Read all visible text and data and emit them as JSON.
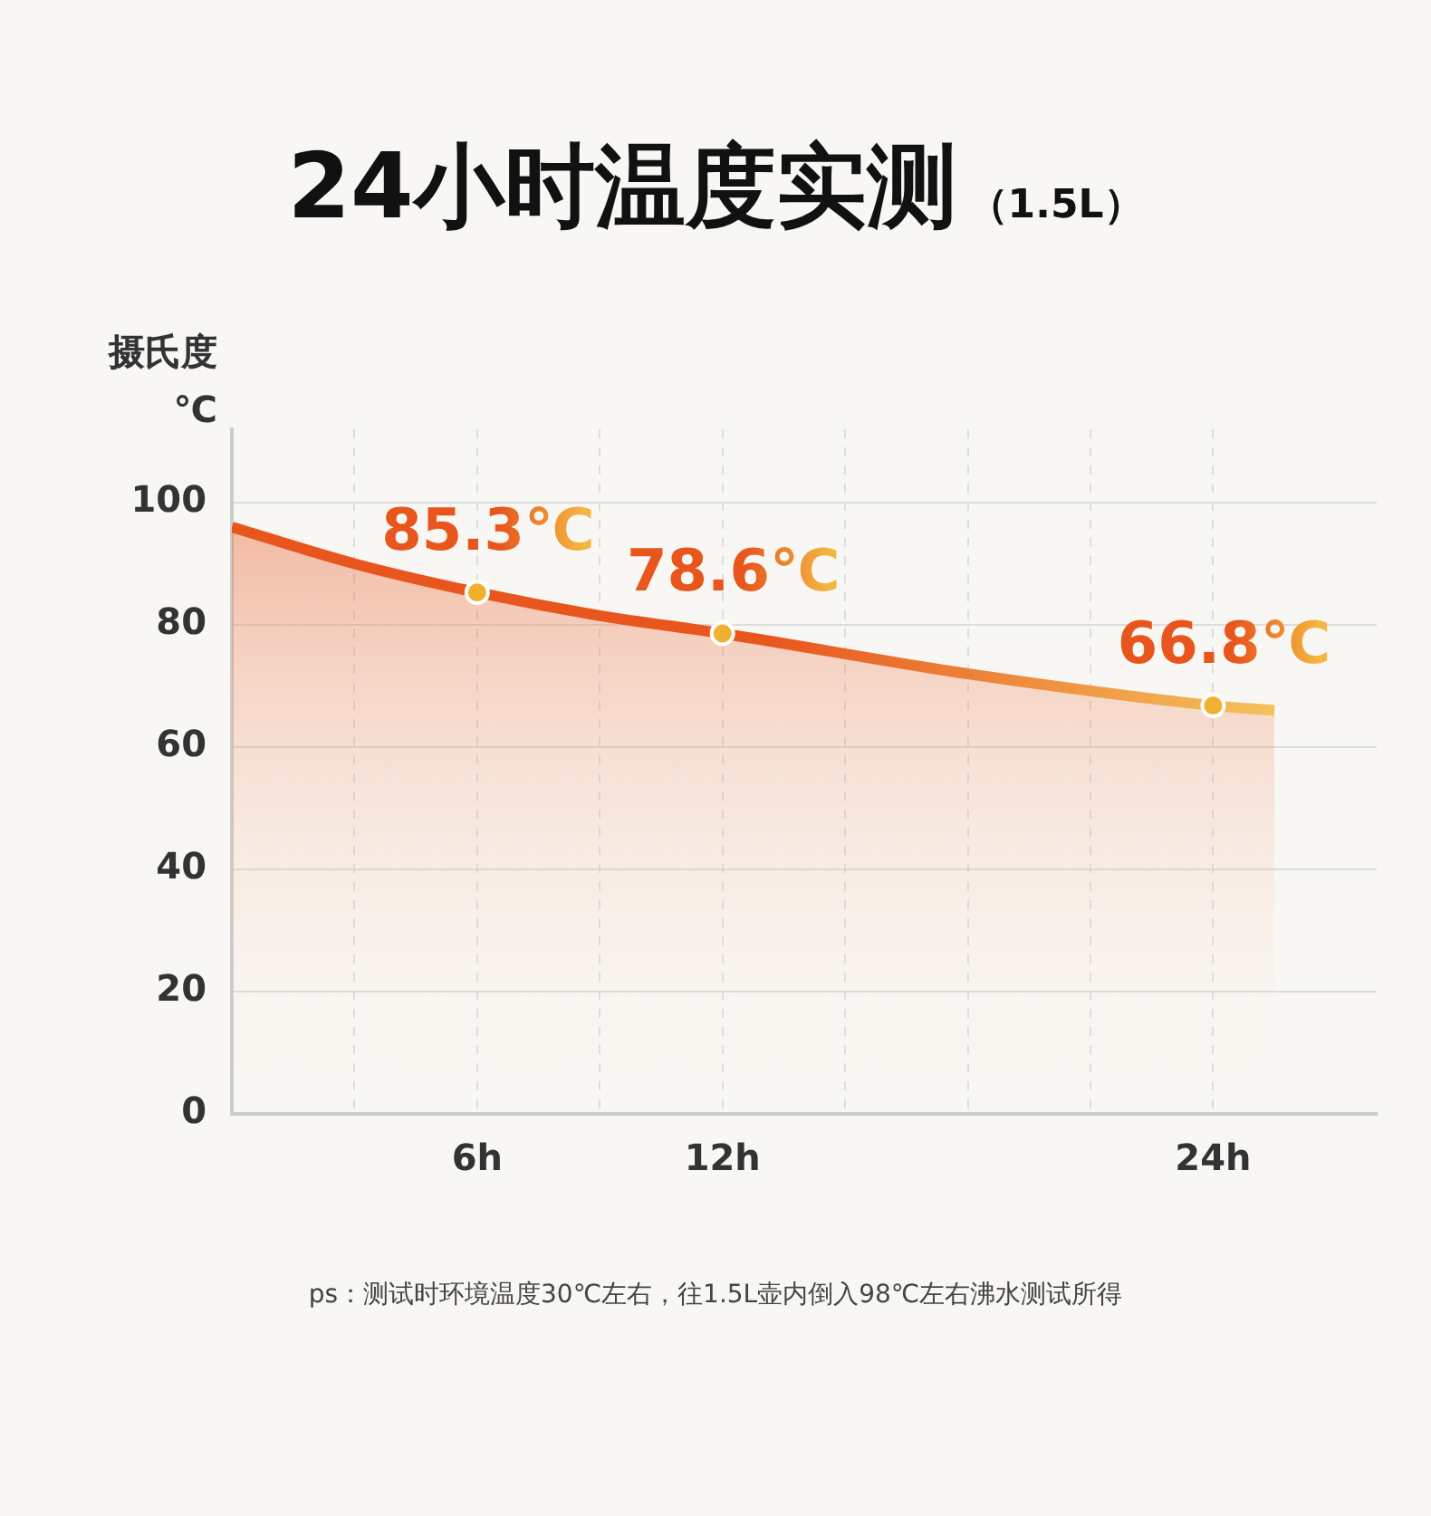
{
  "chart_data": {
    "type": "area",
    "title": "24小时温度实测",
    "subtitle": "（1.5L）",
    "ylabel": "摄氏度\n℃",
    "annotations": [
      "ps：测试时环境温度30℃左右，往1.5L壶内倒入98℃左右沸水测试所得"
    ],
    "series": [
      {
        "color": "#e8561e",
        "x": [
          0,
          3,
          6,
          9,
          12,
          18,
          24,
          25.5
        ],
        "values": [
          96,
          90,
          85.3,
          81.5,
          78.6,
          72,
          66.8,
          66
        ]
      },
      {
        "type": "scatter",
        "color": "#f0b030",
        "marker": "circle",
        "x": [
          6,
          12,
          24
        ],
        "values": [
          85.3,
          78.6,
          66.8
        ],
        "value_labels": [
          "85.3℃",
          "78.6℃",
          "66.8℃"
        ]
      }
    ],
    "xlim": [
      0,
      28
    ],
    "xticks": [
      {
        "value": 3,
        "label": null
      },
      {
        "value": 6,
        "label": "6h"
      },
      {
        "value": 9,
        "label": null
      },
      {
        "value": 12,
        "label": "12h"
      },
      {
        "value": 15,
        "label": null
      },
      {
        "value": 18,
        "label": null
      },
      {
        "value": 21,
        "label": null
      },
      {
        "value": 24,
        "label": "24h"
      }
    ],
    "ylim": [
      0,
      112
    ],
    "yticks": [
      0,
      20,
      40,
      60,
      80,
      100
    ],
    "grid": true
  }
}
